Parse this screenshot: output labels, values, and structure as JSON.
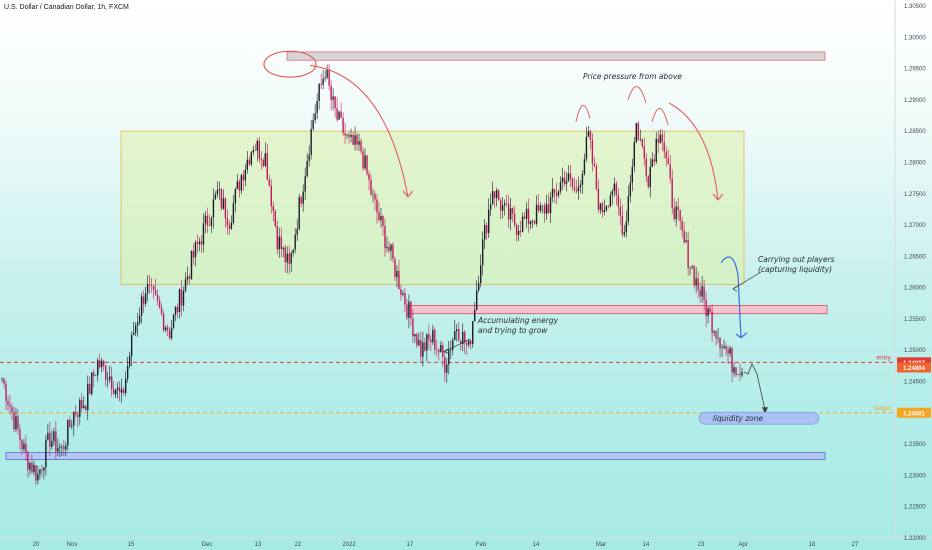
{
  "header": {
    "title": "U.S. Dollar / Canadian Dollar, 1h, FXCM"
  },
  "colors": {
    "candle_up": "#1b1b2b",
    "candle_down": "#c2185b",
    "zone_fill": "rgba(221,240,170,0.55)",
    "zone_border": "#e8b44c",
    "resistance": "#f4c5cf",
    "support": "#b9c8f2",
    "entry": "#e53935",
    "target": "#f5a623",
    "arrow": "#e35d5d",
    "liquidity": "#3d6be0"
  },
  "annotations": {
    "pressure": "Price pressure from above",
    "accumulating_line1": "Accumulating energy",
    "accumulating_line2": "and trying to grow",
    "carrying_line1": "Carrying out players",
    "carrying_line2": "(capturing liquidity)",
    "liquidity": "liquidity zone"
  },
  "chart_data": {
    "type": "candlestick",
    "title": "U.S. Dollar / Canadian Dollar, 1h, FXCM",
    "y_axis": {
      "range": [
        1.22,
        1.305
      ],
      "ticks": [
        "1.30500",
        "1.30000",
        "1.29500",
        "1.29000",
        "1.28500",
        "1.28000",
        "1.27500",
        "1.27000",
        "1.26500",
        "1.26000",
        "1.25500",
        "1.25000",
        "1.24500",
        "1.24000",
        "1.23500",
        "1.23000",
        "1.22500",
        "1.22000"
      ]
    },
    "x_axis": {
      "ticks": [
        "20",
        "Nov",
        "15",
        "Dec",
        "13",
        "22",
        "2022",
        "17",
        "Feb",
        "14",
        "Mar",
        "14",
        "23",
        "Apr",
        "18",
        "27"
      ]
    },
    "path_points": [
      [
        0,
        1.2455
      ],
      [
        2,
        1.239
      ],
      [
        4,
        1.233
      ],
      [
        6,
        1.23
      ],
      [
        8,
        1.236
      ],
      [
        10,
        1.234
      ],
      [
        12,
        1.24
      ],
      [
        14,
        1.242
      ],
      [
        16,
        1.248
      ],
      [
        18,
        1.246
      ],
      [
        20,
        1.242
      ],
      [
        22,
        1.253
      ],
      [
        24,
        1.26
      ],
      [
        26,
        1.257
      ],
      [
        28,
        1.253
      ],
      [
        30,
        1.259
      ],
      [
        32,
        1.265
      ],
      [
        34,
        1.27
      ],
      [
        36,
        1.275
      ],
      [
        38,
        1.271
      ],
      [
        40,
        1.278
      ],
      [
        42,
        1.283
      ],
      [
        44,
        1.281
      ],
      [
        46,
        1.268
      ],
      [
        48,
        1.263
      ],
      [
        50,
        1.275
      ],
      [
        52,
        1.287
      ],
      [
        54,
        1.295
      ],
      [
        55,
        1.29
      ],
      [
        56,
        1.287
      ],
      [
        58,
        1.283
      ],
      [
        60,
        1.282
      ],
      [
        62,
        1.274
      ],
      [
        64,
        1.268
      ],
      [
        66,
        1.262
      ],
      [
        68,
        1.256
      ],
      [
        70,
        1.25
      ],
      [
        72,
        1.252
      ],
      [
        74,
        1.248
      ],
      [
        76,
        1.254
      ],
      [
        78,
        1.25
      ],
      [
        80,
        1.265
      ],
      [
        82,
        1.276
      ],
      [
        84,
        1.272
      ],
      [
        86,
        1.27
      ],
      [
        88,
        1.271
      ],
      [
        90,
        1.272
      ],
      [
        92,
        1.274
      ],
      [
        94,
        1.278
      ],
      [
        96,
        1.275
      ],
      [
        98,
        1.284
      ],
      [
        100,
        1.272
      ],
      [
        102,
        1.276
      ],
      [
        104,
        1.269
      ],
      [
        106,
        1.286
      ],
      [
        108,
        1.278
      ],
      [
        110,
        1.286
      ],
      [
        112,
        1.274
      ],
      [
        114,
        1.267
      ],
      [
        116,
        1.261
      ],
      [
        118,
        1.256
      ],
      [
        120,
        1.252
      ],
      [
        122,
        1.248
      ],
      [
        124,
        1.247
      ]
    ],
    "levels": [
      {
        "name": "resistance top",
        "kind": "band",
        "from": 1.2965,
        "to": 1.2975
      },
      {
        "name": "range zone",
        "kind": "zone",
        "from": 1.2605,
        "to": 1.285
      },
      {
        "name": "support upper",
        "kind": "band",
        "from": 1.256,
        "to": 1.257
      },
      {
        "name": "support lower",
        "kind": "band",
        "from": 1.2327,
        "to": 1.2335
      },
      {
        "name": "entry",
        "kind": "dashed",
        "value": 1.24807,
        "label": "entry",
        "tag": "1.24807"
      },
      {
        "name": "current",
        "kind": "tag",
        "value": 1.24804,
        "tag": "1.24804"
      },
      {
        "name": "target",
        "kind": "dashed",
        "value": 1.24001,
        "label": "target",
        "tag": "1.24001"
      }
    ],
    "grid": false
  }
}
